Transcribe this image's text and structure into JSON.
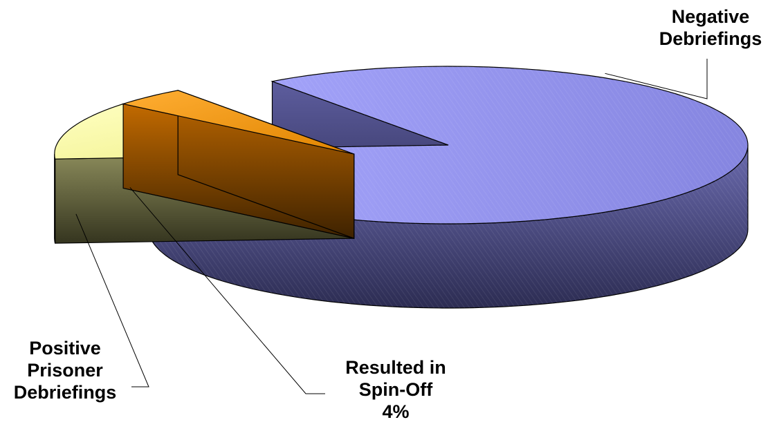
{
  "chart_data": {
    "type": "pie",
    "style": "3d-exploded",
    "slices": [
      {
        "label_lines": [
          "Negative",
          "Debriefings"
        ],
        "value": 84,
        "value_label": "",
        "color": "#9999ff"
      },
      {
        "label_lines": [
          "Positive",
          "Prisoner",
          "Debriefings"
        ],
        "value": 12,
        "value_label": "",
        "color": "#ffff99"
      },
      {
        "label_lines": [
          "Resulted in",
          "Spin-Off"
        ],
        "value": 4,
        "value_label": "4%",
        "color": "#ff9900"
      }
    ]
  }
}
